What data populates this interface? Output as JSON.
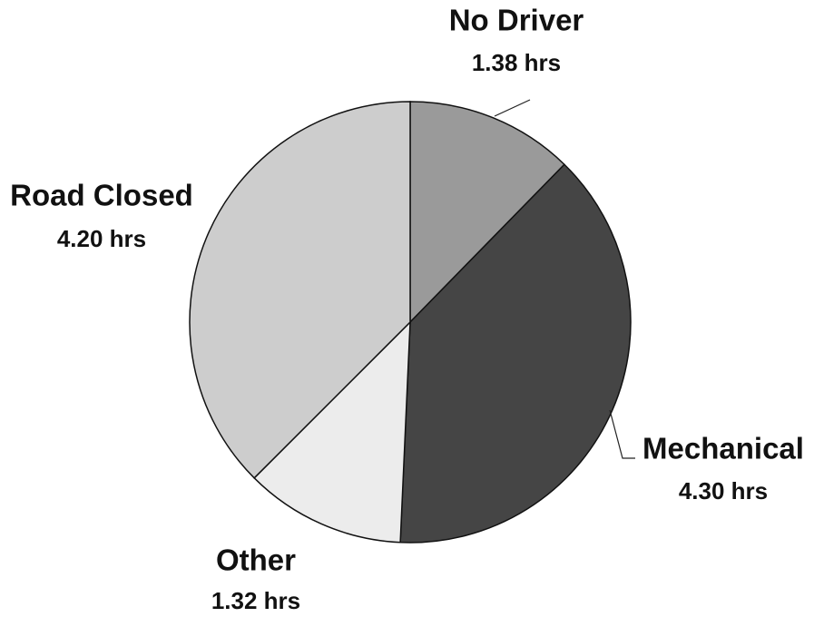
{
  "chart_data": {
    "type": "pie",
    "categories": [
      "No Driver",
      "Mechanical",
      "Other",
      "Road Closed"
    ],
    "values": [
      1.38,
      4.3,
      1.32,
      4.2
    ],
    "value_labels": [
      "1.38 hrs",
      "4.30 hrs",
      "1.32 hrs",
      "4.20 hrs"
    ],
    "colors": [
      "#9a9a9a",
      "#454545",
      "#ececec",
      "#cdcdcd"
    ],
    "start_angle": 0,
    "direction": "clockwise"
  }
}
